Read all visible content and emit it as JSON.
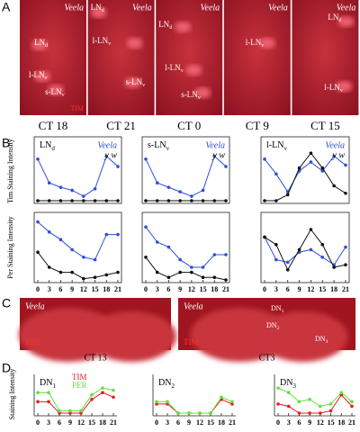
{
  "panel_labels": [
    "A",
    "B",
    "C",
    "D"
  ],
  "panel_a": [
    {
      "caption": "CT 18",
      "strain": "Veela",
      "stain": "TIM",
      "labels": [
        {
          "main": "LN",
          "sub": "d"
        },
        {
          "main": "l-LN",
          "sub": "v"
        },
        {
          "main": "s-LN",
          "sub": "v"
        }
      ]
    },
    {
      "caption": "CT 21",
      "strain": "Veela",
      "labels": [
        {
          "main": "LN",
          "sub": "d"
        },
        {
          "main": "l-LN",
          "sub": "v"
        },
        {
          "main": "s-LN",
          "sub": "v"
        }
      ]
    },
    {
      "caption": "CT 0",
      "strain": "Veela",
      "labels": [
        {
          "main": "LN",
          "sub": "d"
        },
        {
          "main": "l-LN",
          "sub": "v"
        },
        {
          "main": "s-LN",
          "sub": "v"
        }
      ]
    },
    {
      "caption": "CT 9",
      "strain": "Veela",
      "labels": [
        {
          "main": "l-LN",
          "sub": "v"
        }
      ]
    },
    {
      "caption": "CT 15",
      "strain": "Veela",
      "labels": [
        {
          "main": "LN",
          "sub": "d"
        },
        {
          "main": "l-LN",
          "sub": "v"
        }
      ]
    }
  ],
  "panel_b": {
    "tim_axis_label": "Tim Staining Intensity",
    "per_axis_label": "Per Staining Intensity"
  },
  "panel_c": [
    {
      "caption": "CT 13",
      "strain": "Veela",
      "stain": "TIM",
      "labels": []
    },
    {
      "caption": "CT3",
      "strain": "Veela",
      "stain": "TIM",
      "labels": [
        {
          "main": "DN",
          "sub": "1"
        },
        {
          "main": "DN",
          "sub": "2"
        },
        {
          "main": "DN",
          "sub": "3"
        }
      ]
    }
  ],
  "panel_d": {
    "axis_label": "Staining Intensity"
  },
  "chart_data": [
    {
      "type": "line",
      "title": "LN",
      "title_sub": "d",
      "x": [
        0,
        3,
        6,
        9,
        12,
        15,
        18,
        21
      ],
      "xlim": [
        0,
        21
      ],
      "ylim": [
        0,
        2
      ],
      "legend": "upper right",
      "series": [
        {
          "name": "Veela",
          "color": "#2f4fd8",
          "values": [
            1.4,
            0.6,
            0.45,
            0.35,
            0.15,
            0.4,
            1.5,
            1.15
          ]
        },
        {
          "name": "y w",
          "color": "#111111",
          "values": [
            0,
            0,
            0,
            0,
            0,
            0,
            0,
            0
          ]
        }
      ]
    },
    {
      "type": "line",
      "title": "s-LN",
      "title_sub": "v",
      "x": [
        0,
        3,
        6,
        9,
        12,
        15,
        18,
        21
      ],
      "xlim": [
        0,
        21
      ],
      "ylim": [
        0,
        2
      ],
      "legend": "upper right",
      "series": [
        {
          "name": "Veela",
          "color": "#2f4fd8",
          "values": [
            1.4,
            0.6,
            0.45,
            0.3,
            0.15,
            0.35,
            1.5,
            1.15
          ]
        },
        {
          "name": "y w",
          "color": "#111111",
          "values": [
            0,
            0,
            0,
            0,
            0,
            0,
            0,
            0
          ]
        }
      ]
    },
    {
      "type": "line",
      "title": "l-LN",
      "title_sub": "v",
      "x": [
        0,
        3,
        6,
        9,
        12,
        15,
        18,
        21
      ],
      "xlim": [
        0,
        21
      ],
      "ylim": [
        0,
        2
      ],
      "legend": "upper right",
      "series": [
        {
          "name": "Veela",
          "color": "#2f4fd8",
          "values": [
            1.4,
            0.9,
            0.3,
            1.0,
            1.3,
            1.0,
            1.5,
            1.2
          ]
        },
        {
          "name": "y w",
          "color": "#111111",
          "values": [
            0,
            0,
            0.2,
            1.1,
            1.6,
            1.1,
            0.5,
            0.25
          ]
        }
      ]
    },
    {
      "type": "line",
      "x": [
        0,
        3,
        6,
        9,
        12,
        15,
        18,
        21
      ],
      "xlim": [
        0,
        21
      ],
      "ylim": [
        0,
        2.5
      ],
      "xticks": [
        0,
        3,
        6,
        9,
        12,
        15,
        18,
        21
      ],
      "series": [
        {
          "color": "#2f4fd8",
          "values": [
            2.3,
            1.9,
            1.6,
            1.2,
            0.9,
            0.8,
            1.8,
            1.8
          ]
        },
        {
          "color": "#111111",
          "values": [
            1.1,
            0.5,
            0.3,
            0.3,
            0.05,
            0.1,
            0.2,
            0.3
          ]
        }
      ]
    },
    {
      "type": "line",
      "x": [
        0,
        3,
        6,
        9,
        12,
        15,
        18,
        21
      ],
      "xlim": [
        0,
        21
      ],
      "ylim": [
        0,
        2.5
      ],
      "xticks": [
        0,
        3,
        6,
        9,
        12,
        15,
        18,
        21
      ],
      "series": [
        {
          "color": "#2f4fd8",
          "values": [
            2.1,
            1.5,
            1.3,
            0.8,
            0.5,
            0.5,
            1.0,
            1.0
          ]
        },
        {
          "color": "#111111",
          "values": [
            0.9,
            0.3,
            0.1,
            0.3,
            0.3,
            0.1,
            0.1,
            0
          ]
        }
      ]
    },
    {
      "type": "line",
      "x": [
        0,
        3,
        6,
        9,
        12,
        15,
        18,
        21
      ],
      "xlim": [
        0,
        21
      ],
      "ylim": [
        0,
        2.5
      ],
      "xticks": [
        0,
        3,
        6,
        9,
        12,
        15,
        18,
        21
      ],
      "series": [
        {
          "color": "#2f4fd8",
          "values": [
            1.7,
            0.8,
            0.7,
            1.1,
            1.2,
            0.9,
            0.6,
            1.3
          ]
        },
        {
          "color": "#111111",
          "values": [
            1.7,
            1.4,
            0.4,
            1.2,
            2.0,
            1.4,
            0.5,
            0.6
          ]
        }
      ]
    },
    {
      "type": "line",
      "title": "DN",
      "title_sub": "1",
      "x": [
        0,
        3,
        6,
        9,
        12,
        15,
        18,
        21
      ],
      "xlim": [
        0,
        21
      ],
      "ylim": [
        0,
        1.5
      ],
      "xticks": [
        0,
        3,
        6,
        9,
        12,
        15,
        18,
        21
      ],
      "legend": "upper center",
      "series": [
        {
          "name": "TIM",
          "color": "#e02020",
          "values": [
            0.5,
            0.5,
            0,
            0,
            0,
            0.6,
            0.9,
            0.7
          ]
        },
        {
          "name": "PER",
          "color": "#66dd44",
          "values": [
            0.9,
            0.9,
            0.1,
            0.1,
            0.1,
            0.8,
            1.1,
            1.0
          ]
        }
      ]
    },
    {
      "type": "line",
      "title": "DN",
      "title_sub": "2",
      "x": [
        0,
        3,
        6,
        9,
        12,
        15,
        18,
        21
      ],
      "xlim": [
        0,
        21
      ],
      "ylim": [
        0,
        1.5
      ],
      "xticks": [
        0,
        3,
        6,
        9,
        12,
        15,
        18,
        21
      ],
      "series": [
        {
          "color": "#e02020",
          "values": [
            0.4,
            0.4,
            0,
            0,
            0,
            0,
            0.6,
            0.4
          ]
        },
        {
          "color": "#66dd44",
          "values": [
            0.5,
            0.5,
            0,
            0,
            0,
            0,
            0.7,
            0.5
          ]
        }
      ]
    },
    {
      "type": "line",
      "title": "DN",
      "title_sub": "3",
      "x": [
        0,
        3,
        6,
        9,
        12,
        15,
        18,
        21
      ],
      "xlim": [
        0,
        21
      ],
      "ylim": [
        0,
        1.5
      ],
      "xticks": [
        0,
        3,
        6,
        9,
        12,
        15,
        18,
        21
      ],
      "series": [
        {
          "color": "#e02020",
          "values": [
            0.4,
            0.3,
            0,
            0,
            0,
            0.1,
            0.8,
            0.3
          ]
        },
        {
          "color": "#66dd44",
          "values": [
            1.1,
            0.9,
            0.5,
            0.6,
            0.3,
            0.4,
            0.9,
            0.5
          ]
        }
      ]
    }
  ]
}
